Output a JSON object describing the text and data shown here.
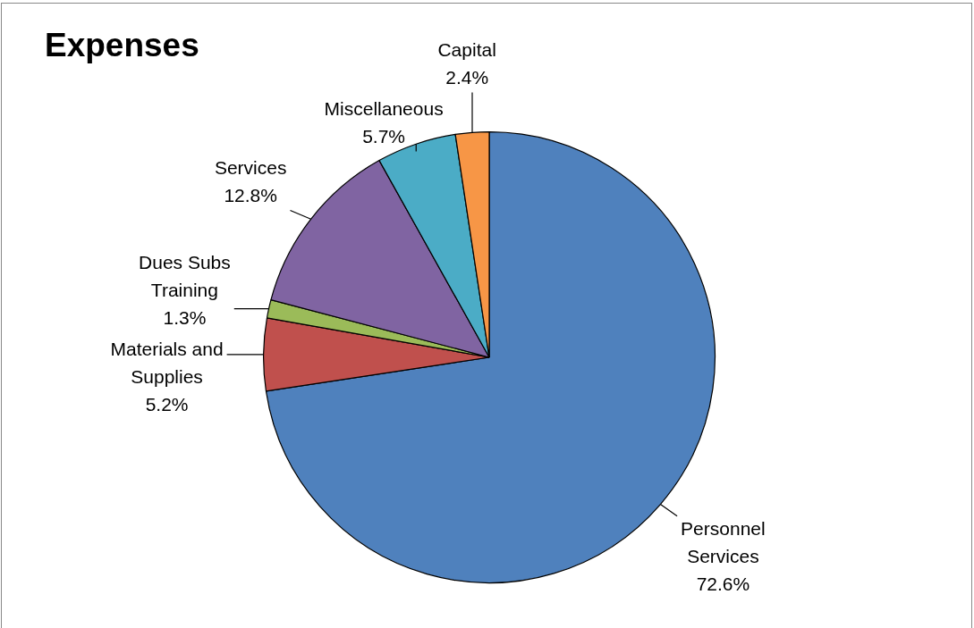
{
  "chart_data": {
    "type": "pie",
    "title": "Expenses",
    "categories": [
      "Personnel Services",
      "Materials and Supplies",
      "Dues Subs Training",
      "Services",
      "Miscellaneous",
      "Capital"
    ],
    "values": [
      72.6,
      5.2,
      1.3,
      12.8,
      5.7,
      2.4
    ],
    "value_labels": [
      "72.6%",
      "5.2%",
      "1.3%",
      "12.8%",
      "5.7%",
      "2.4%"
    ],
    "colors": [
      "#4f81bd",
      "#c0504d",
      "#9bbb59",
      "#8064a2",
      "#4bacc6",
      "#f79646"
    ],
    "legend": false
  }
}
